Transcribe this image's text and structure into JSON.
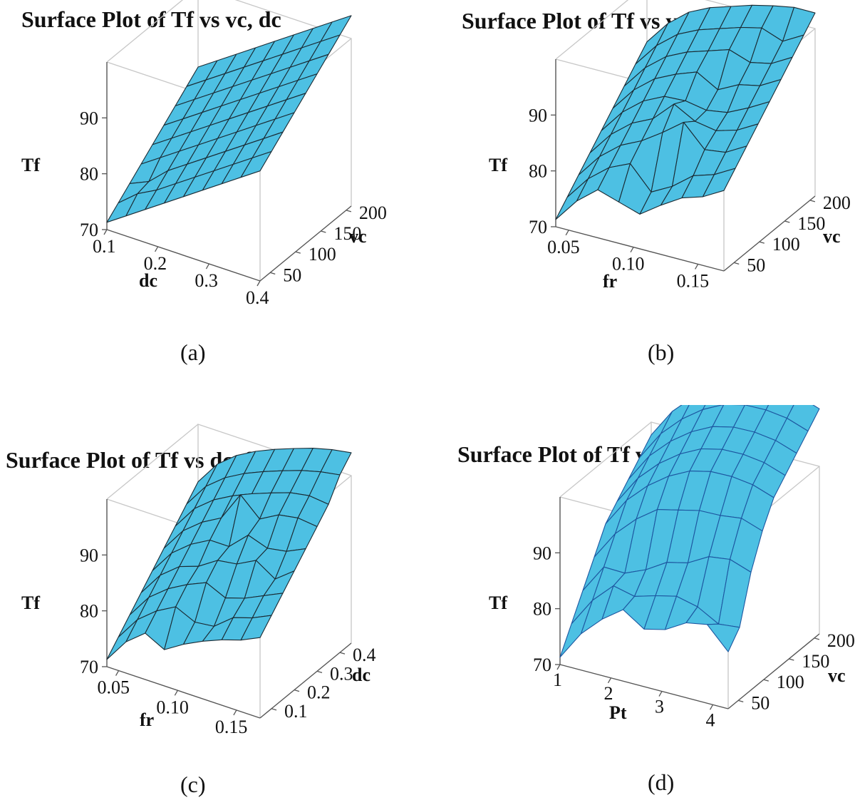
{
  "chart_data": [
    {
      "type": "surface",
      "title": "Surface Plot of Tf vs vc, dc",
      "caption": "(a)",
      "x_label": "dc",
      "y_label": "vc",
      "z_label": "Tf",
      "x_ticks": [
        "0.1",
        "0.2",
        "0.3",
        "0.4"
      ],
      "y_ticks": [
        "50",
        "100",
        "150",
        "200"
      ],
      "z_ticks": [
        "70",
        "80",
        "90"
      ],
      "x_range": [
        0.1,
        0.4
      ],
      "y_range": [
        30,
        210
      ],
      "z_range": [
        70,
        100
      ],
      "x": [
        0.1,
        0.1375,
        0.175,
        0.2125,
        0.25,
        0.2875,
        0.325,
        0.3625,
        0.4
      ],
      "y": [
        30,
        52.5,
        75,
        97.5,
        120,
        142.5,
        165,
        187.5,
        210
      ],
      "surface_color": "#4dc0e3",
      "mesh_color": "#1a2a33",
      "z": [
        [
          71.3,
          73.6,
          75.9,
          78.2,
          80.5,
          82.8,
          85.1,
          87.4,
          89.7
        ],
        [
          73.1,
          75.9,
          77.7,
          80.0,
          82.3,
          84.6,
          86.9,
          89.2,
          91.5
        ],
        [
          74.9,
          76.4,
          79.5,
          81.8,
          84.1,
          86.4,
          88.7,
          91.0,
          93.3
        ],
        [
          76.7,
          79.0,
          81.3,
          83.6,
          85.9,
          88.2,
          90.5,
          92.8,
          95.1
        ],
        [
          78.5,
          80.8,
          83.1,
          85.4,
          87.7,
          90.0,
          92.3,
          94.6,
          96.9
        ],
        [
          80.3,
          82.6,
          84.9,
          87.2,
          89.5,
          91.8,
          94.1,
          96.4,
          98.7
        ],
        [
          82.1,
          84.4,
          86.7,
          89.0,
          91.3,
          93.6,
          95.9,
          98.2,
          100.5
        ],
        [
          83.9,
          86.2,
          88.5,
          90.8,
          93.1,
          95.4,
          97.7,
          100.0,
          102.3
        ],
        [
          85.7,
          88.0,
          90.3,
          92.6,
          94.9,
          97.2,
          99.5,
          101.8,
          104.1
        ]
      ]
    },
    {
      "type": "surface",
      "title": "Surface Plot of Tf vs vc, fr",
      "caption": "(b)",
      "x_label": "fr",
      "y_label": "vc",
      "z_label": "Tf",
      "x_ticks": [
        "0.05",
        "0.10",
        "0.15"
      ],
      "y_ticks": [
        "50",
        "100",
        "150",
        "200"
      ],
      "z_ticks": [
        "70",
        "80",
        "90"
      ],
      "x_range": [
        0.04,
        0.17
      ],
      "y_range": [
        30,
        210
      ],
      "z_range": [
        70,
        100
      ],
      "x": [
        0.04,
        0.05625,
        0.0725,
        0.08875,
        0.105,
        0.12125,
        0.1375,
        0.15375,
        0.17
      ],
      "y": [
        30,
        52.5,
        75,
        97.5,
        120,
        142.5,
        165,
        187.5,
        210
      ],
      "surface_color": "#4dc0e3",
      "mesh_color": "#1a2a33",
      "z": [
        [
          71.3,
          75.6,
          78.6,
          77.4,
          76.2,
          78.8,
          81.1,
          82.3,
          84.4
        ],
        [
          73.6,
          77.9,
          80.9,
          82.6,
          78.5,
          80.5,
          83.4,
          84.6,
          86.7
        ],
        [
          75.9,
          80.2,
          83.2,
          85.0,
          87.5,
          90.3,
          86.4,
          86.9,
          89.0
        ],
        [
          78.2,
          82.5,
          85.5,
          87.3,
          90.9,
          88.8,
          88.1,
          89.2,
          91.3
        ],
        [
          80.5,
          84.8,
          87.8,
          89.6,
          89.8,
          89.1,
          89.7,
          91.5,
          93.6
        ],
        [
          82.8,
          87.1,
          90.1,
          91.9,
          93.3,
          91.1,
          93.0,
          93.8,
          95.9
        ],
        [
          85.1,
          89.4,
          92.4,
          94.2,
          95.4,
          96.6,
          95.3,
          96.1,
          98.2
        ],
        [
          87.4,
          91.7,
          94.7,
          96.5,
          97.7,
          98.9,
          99.8,
          98.4,
          100.5
        ],
        [
          89.7,
          94.0,
          97.0,
          98.8,
          100.0,
          101.2,
          102.1,
          102.8,
          102.8
        ]
      ]
    },
    {
      "type": "surface",
      "title": "Surface Plot of Tf vs dc, fr",
      "caption": "(c)",
      "x_label": "fr",
      "y_label": "dc",
      "z_label": "Tf",
      "x_ticks": [
        "0.05",
        "0.10",
        "0.15"
      ],
      "y_ticks": [
        "0.1",
        "0.2",
        "0.3",
        "0.4"
      ],
      "z_ticks": [
        "70",
        "80",
        "90"
      ],
      "x_range": [
        0.04,
        0.17
      ],
      "y_range": [
        0.05,
        0.45
      ],
      "z_range": [
        70,
        100
      ],
      "x": [
        0.04,
        0.05625,
        0.0725,
        0.08875,
        0.105,
        0.12125,
        0.1375,
        0.15375,
        0.17
      ],
      "y": [
        0.05,
        0.1,
        0.15,
        0.2,
        0.25,
        0.3,
        0.35,
        0.4,
        0.45
      ],
      "surface_color": "#4dc0e3",
      "mesh_color": "#1a2a33",
      "z": [
        [
          71.3,
          75.6,
          78.3,
          76.5,
          78.6,
          80.3,
          81.7,
          82.8,
          84.4
        ],
        [
          73.6,
          77.9,
          80.6,
          82.5,
          80.9,
          81.3,
          84.0,
          85.1,
          86.7
        ],
        [
          75.9,
          80.2,
          82.9,
          84.8,
          86.3,
          84.7,
          85.8,
          87.4,
          89.0
        ],
        [
          78.2,
          82.5,
          85.2,
          86.4,
          88.6,
          89.1,
          90.9,
          88.7,
          91.3
        ],
        [
          80.5,
          84.8,
          87.5,
          89.4,
          89.4,
          92.6,
          91.4,
          92.0,
          93.6
        ],
        [
          82.8,
          87.1,
          89.8,
          91.7,
          97.0,
          93.8,
          95.7,
          96.3,
          95.9
        ],
        [
          85.1,
          89.4,
          92.1,
          94.0,
          95.5,
          96.8,
          98.0,
          98.6,
          98.2
        ],
        [
          87.4,
          91.7,
          94.4,
          96.3,
          97.8,
          99.1,
          100.3,
          101.2,
          101.8
        ],
        [
          89.7,
          94.0,
          96.7,
          98.6,
          100.1,
          101.4,
          102.6,
          103.5,
          104.1
        ]
      ]
    },
    {
      "type": "surface",
      "title": "Surface Plot of Tf vs vc, Pt",
      "caption": "(d)",
      "x_label": "Pt",
      "y_label": "vc",
      "z_label": "Tf",
      "x_ticks": [
        "1",
        "2",
        "3",
        "4"
      ],
      "y_ticks": [
        "50",
        "100",
        "150",
        "200"
      ],
      "z_ticks": [
        "70",
        "80",
        "90"
      ],
      "x_range": [
        1,
        4.3
      ],
      "y_range": [
        30,
        210
      ],
      "z_range": [
        70,
        100
      ],
      "x": [
        1,
        1.4125,
        1.825,
        2.2375,
        2.65,
        3.0625,
        3.475,
        3.8875,
        4.3
      ],
      "y": [
        30,
        52.5,
        75,
        97.5,
        120,
        142.5,
        165,
        187.5,
        210
      ],
      "surface_color": "#4dc0e3",
      "mesh_color": "#1d56a0",
      "z": [
        [
          71.3,
          76.5,
          80.1,
          82.8,
          80.3,
          81.2,
          83.4,
          84.1,
          80.2
        ],
        [
          75.6,
          80.8,
          84.4,
          83.5,
          84.6,
          85.5,
          84.6,
          82.5,
          82.9
        ],
        [
          79.9,
          85.1,
          85.0,
          86.6,
          88.9,
          89.8,
          91.9,
          92.4,
          91.1
        ],
        [
          84.2,
          89.4,
          93.0,
          95.7,
          96.6,
          97.5,
          97.6,
          98.1,
          96.8
        ],
        [
          88.5,
          93.7,
          97.3,
          100.0,
          101.9,
          102.8,
          102.9,
          102.4,
          101.1
        ],
        [
          90.8,
          96.0,
          99.6,
          102.3,
          104.2,
          105.1,
          105.2,
          104.7,
          103.4
        ],
        [
          93.1,
          98.3,
          101.9,
          104.6,
          106.5,
          107.4,
          107.5,
          107.0,
          105.7
        ],
        [
          95.4,
          100.6,
          104.2,
          106.9,
          108.8,
          109.7,
          109.8,
          109.3,
          108.0
        ],
        [
          97.7,
          102.9,
          106.5,
          109.2,
          111.1,
          112.0,
          112.1,
          111.6,
          110.3
        ]
      ]
    }
  ]
}
